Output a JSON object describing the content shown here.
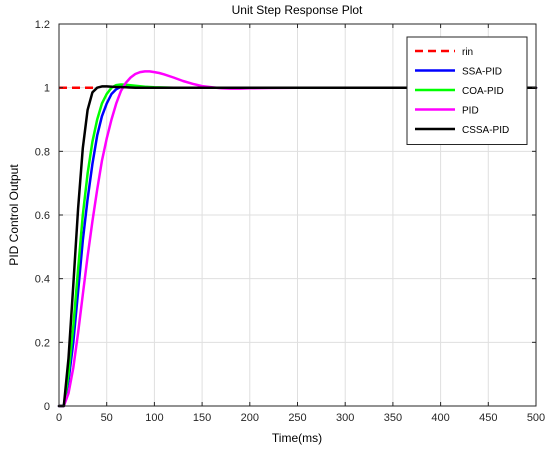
{
  "chart_data": {
    "type": "line",
    "title": "Unit Step Response Plot",
    "xlabel": "Time(ms)",
    "ylabel": "PID Control Output",
    "xlim": [
      0,
      500
    ],
    "ylim": [
      0,
      1.2
    ],
    "xticks": [
      0,
      50,
      100,
      150,
      200,
      250,
      300,
      350,
      400,
      450,
      500
    ],
    "yticks": [
      0,
      0.2,
      0.4,
      0.6,
      0.8,
      1,
      1.2
    ],
    "grid": true,
    "legend_position": "top-right",
    "series": [
      {
        "name": "rin",
        "color": "#ff0000",
        "dash": "dashed",
        "x": [
          0,
          40
        ],
        "y": [
          1,
          1
        ]
      },
      {
        "name": "SSA-PID",
        "color": "#0000ff",
        "dash": "solid",
        "x": [
          0,
          5,
          10,
          15,
          20,
          25,
          30,
          35,
          40,
          45,
          50,
          55,
          60,
          65,
          70,
          75,
          80,
          90,
          100,
          120,
          150,
          200,
          300,
          400,
          500
        ],
        "y": [
          0,
          0.0,
          0.08,
          0.2,
          0.36,
          0.52,
          0.65,
          0.76,
          0.85,
          0.91,
          0.95,
          0.98,
          0.995,
          1.003,
          1.006,
          1.006,
          1.004,
          1.002,
          1.0,
          1.0,
          1.0,
          1.0,
          1.0,
          1.0,
          1.0
        ]
      },
      {
        "name": "COA-PID",
        "color": "#00ff00",
        "dash": "solid",
        "x": [
          0,
          5,
          10,
          15,
          20,
          25,
          30,
          35,
          40,
          45,
          50,
          55,
          60,
          65,
          70,
          80,
          90,
          100,
          120,
          150,
          200,
          300,
          400,
          500
        ],
        "y": [
          0,
          0.0,
          0.1,
          0.25,
          0.43,
          0.6,
          0.73,
          0.83,
          0.9,
          0.95,
          0.98,
          1.0,
          1.008,
          1.01,
          1.009,
          1.006,
          1.003,
          1.001,
          1.0,
          1.0,
          1.0,
          1.0,
          1.0,
          1.0
        ]
      },
      {
        "name": "PID",
        "color": "#ff00ff",
        "dash": "solid",
        "x": [
          0,
          5,
          10,
          15,
          20,
          25,
          30,
          35,
          40,
          45,
          50,
          55,
          60,
          65,
          70,
          75,
          80,
          85,
          90,
          95,
          100,
          105,
          110,
          120,
          130,
          140,
          150,
          160,
          170,
          180,
          190,
          200,
          220,
          250,
          300,
          400,
          500
        ],
        "y": [
          0,
          0.0,
          0.04,
          0.12,
          0.23,
          0.35,
          0.47,
          0.58,
          0.68,
          0.77,
          0.84,
          0.9,
          0.95,
          0.99,
          1.015,
          1.032,
          1.043,
          1.049,
          1.051,
          1.051,
          1.049,
          1.046,
          1.042,
          1.032,
          1.021,
          1.012,
          1.005,
          1.001,
          0.998,
          0.997,
          0.997,
          0.998,
          0.999,
          1.0,
          1.0,
          1.0,
          1.0
        ]
      },
      {
        "name": "CSSA-PID",
        "color": "#000000",
        "dash": "solid",
        "x": [
          0,
          5,
          10,
          15,
          20,
          25,
          30,
          35,
          40,
          45,
          50,
          60,
          70,
          80,
          100,
          150,
          200,
          300,
          400,
          500
        ],
        "y": [
          0,
          0.0,
          0.15,
          0.38,
          0.62,
          0.81,
          0.93,
          0.985,
          1.0,
          1.004,
          1.004,
          1.002,
          1.001,
          1.0,
          1.0,
          1.0,
          1.0,
          1.0,
          1.0,
          1.0
        ]
      }
    ]
  }
}
